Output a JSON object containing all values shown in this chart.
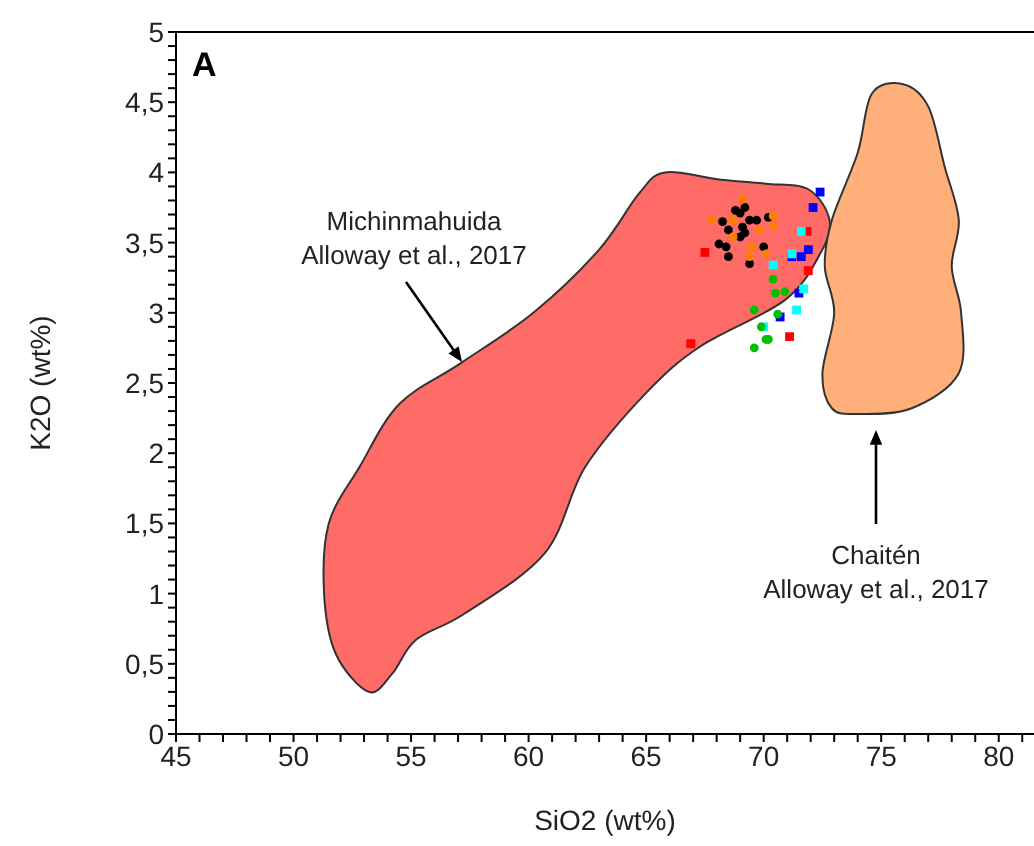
{
  "chart_data": {
    "type": "scatter",
    "xlabel": "SiO2 (wt%)",
    "ylabel": "K2O (wt%)",
    "xlim": [
      45,
      81.5
    ],
    "ylim": [
      0,
      5
    ],
    "xticks": [
      45,
      {
        "value": 46,
        "label": null
      },
      {
        "value": 47,
        "label": null
      },
      {
        "value": 48,
        "label": null
      },
      {
        "value": 49,
        "label": null
      },
      50,
      {
        "value": 51,
        "label": null
      },
      {
        "value": 52,
        "label": null
      },
      {
        "value": 53,
        "label": null
      },
      {
        "value": 54,
        "label": null
      },
      55,
      {
        "value": 56,
        "label": null
      },
      {
        "value": 57,
        "label": null
      },
      {
        "value": 58,
        "label": null
      },
      {
        "value": 59,
        "label": null
      },
      60,
      {
        "value": 61,
        "label": null
      },
      {
        "value": 62,
        "label": null
      },
      {
        "value": 63,
        "label": null
      },
      {
        "value": 64,
        "label": null
      },
      65,
      {
        "value": 66,
        "label": null
      },
      {
        "value": 67,
        "label": null
      },
      {
        "value": 68,
        "label": null
      },
      {
        "value": 69,
        "label": null
      },
      70,
      {
        "value": 71,
        "label": null
      },
      {
        "value": 72,
        "label": null
      },
      {
        "value": 73,
        "label": null
      },
      {
        "value": 74,
        "label": null
      },
      75,
      {
        "value": 76,
        "label": null
      },
      {
        "value": 77,
        "label": null
      },
      {
        "value": 78,
        "label": null
      },
      {
        "value": 79,
        "label": null
      },
      80,
      {
        "value": 81,
        "label": null
      }
    ],
    "yticks": [
      0,
      {
        "value": 0.1,
        "label": null
      },
      {
        "value": 0.2,
        "label": null
      },
      {
        "value": 0.3,
        "label": null
      },
      {
        "value": 0.4,
        "label": null
      },
      {
        "value": 0.5,
        "label": "0,5"
      },
      {
        "value": 0.6,
        "label": null
      },
      {
        "value": 0.7,
        "label": null
      },
      {
        "value": 0.8,
        "label": null
      },
      {
        "value": 0.9,
        "label": null
      },
      1,
      {
        "value": 1.1,
        "label": null
      },
      {
        "value": 1.2,
        "label": null
      },
      {
        "value": 1.3,
        "label": null
      },
      {
        "value": 1.4,
        "label": null
      },
      {
        "value": 1.5,
        "label": "1,5"
      },
      {
        "value": 1.6,
        "label": null
      },
      {
        "value": 1.7,
        "label": null
      },
      {
        "value": 1.8,
        "label": null
      },
      {
        "value": 1.9,
        "label": null
      },
      2,
      {
        "value": 2.1,
        "label": null
      },
      {
        "value": 2.2,
        "label": null
      },
      {
        "value": 2.3,
        "label": null
      },
      {
        "value": 2.4,
        "label": null
      },
      {
        "value": 2.5,
        "label": "2,5"
      },
      {
        "value": 2.6,
        "label": null
      },
      {
        "value": 2.7,
        "label": null
      },
      {
        "value": 2.8,
        "label": null
      },
      {
        "value": 2.9,
        "label": null
      },
      3,
      {
        "value": 3.1,
        "label": null
      },
      {
        "value": 3.2,
        "label": null
      },
      {
        "value": 3.3,
        "label": null
      },
      {
        "value": 3.4,
        "label": null
      },
      {
        "value": 3.5,
        "label": "3,5"
      },
      {
        "value": 3.6,
        "label": null
      },
      {
        "value": 3.7,
        "label": null
      },
      {
        "value": 3.8,
        "label": null
      },
      {
        "value": 3.9,
        "label": null
      },
      4,
      {
        "value": 4.1,
        "label": null
      },
      {
        "value": 4.2,
        "label": null
      },
      {
        "value": 4.3,
        "label": null
      },
      {
        "value": 4.4,
        "label": null
      },
      {
        "value": 4.5,
        "label": "4,5"
      },
      {
        "value": 4.6,
        "label": null
      },
      {
        "value": 4.7,
        "label": null
      },
      {
        "value": 4.8,
        "label": null
      },
      {
        "value": 4.9,
        "label": null
      },
      5
    ],
    "annotations": [
      "A",
      "Michinmahuida\nAlloway et al., 2017",
      "Chaitén\nAlloway et al., 2017"
    ],
    "series": [
      {
        "type": "area",
        "color": "#ff6b66",
        "x": [
          53.2,
          51.8,
          51.3,
          51.5,
          52.8,
          54.5,
          57.1,
          60.2,
          63.0,
          64.7,
          65.8,
          68.1,
          70.1,
          71.9,
          72.8,
          72.4,
          70.9,
          67.3,
          65.0,
          62.4,
          60.7,
          57.3,
          55.2,
          54.2
        ],
        "values": [
          0.3,
          0.57,
          1.0,
          1.5,
          1.9,
          2.35,
          2.64,
          3.0,
          3.45,
          3.85,
          4.0,
          3.95,
          3.92,
          3.88,
          3.66,
          3.42,
          3.09,
          2.76,
          2.43,
          1.9,
          1.29,
          0.86,
          0.67,
          0.43
        ]
      },
      {
        "type": "area",
        "color": "#ffb07a",
        "x": [
          75.9,
          74.6,
          74.0,
          72.9,
          72.6,
          73.0,
          72.5,
          72.9,
          74.0,
          76.3,
          78.3,
          78.4,
          78.0,
          78.3,
          77.7,
          77.0
        ],
        "values": [
          4.63,
          4.56,
          4.14,
          3.66,
          3.33,
          3.0,
          2.57,
          2.32,
          2.28,
          2.32,
          2.57,
          3.0,
          3.33,
          3.66,
          4.04,
          4.47
        ]
      },
      {
        "color": "#000000",
        "marker": "circle",
        "x": [
          68.25,
          68.5,
          69.0,
          69.2,
          69.4,
          69.1,
          69.7,
          70.2,
          68.1,
          68.5,
          69.4,
          69.0,
          70.0,
          68.4,
          69.2,
          68.8
        ],
        "values": [
          3.65,
          3.59,
          3.71,
          3.75,
          3.66,
          3.61,
          3.66,
          3.68,
          3.49,
          3.4,
          3.35,
          3.54,
          3.47,
          3.47,
          3.57,
          3.73
        ]
      },
      {
        "color": "#ff7f00",
        "marker": "circle",
        "x": [
          69.1,
          68.7,
          69.8,
          70.4,
          70.4,
          69.5,
          69.4,
          68.7,
          70.1,
          67.8
        ],
        "values": [
          3.81,
          3.66,
          3.59,
          3.69,
          3.62,
          3.47,
          3.4,
          3.54,
          3.42,
          3.66
        ]
      },
      {
        "color": "#ff0000",
        "marker": "square",
        "x": [
          67.5,
          66.9,
          71.85,
          71.9,
          71.1
        ],
        "values": [
          3.43,
          2.78,
          3.58,
          3.3,
          2.83
        ]
      },
      {
        "color": "#0000ff",
        "marker": "square",
        "x": [
          72.4,
          72.1,
          71.2,
          71.6,
          71.9,
          71.5,
          70.7
        ],
        "values": [
          3.86,
          3.75,
          3.4,
          3.4,
          3.45,
          3.14,
          2.97
        ]
      },
      {
        "color": "#00ffff",
        "marker": "square",
        "x": [
          71.6,
          70.4,
          71.2,
          71.7,
          71.4,
          70.0
        ],
        "values": [
          3.58,
          3.34,
          3.42,
          3.17,
          3.02,
          2.9
        ]
      },
      {
        "color": "#00c000",
        "marker": "circle",
        "x": [
          70.4,
          70.5,
          70.9,
          69.6,
          70.6,
          70.1,
          70.2,
          69.6,
          69.9
        ],
        "values": [
          3.24,
          3.14,
          3.15,
          3.02,
          2.99,
          2.81,
          2.81,
          2.75,
          2.9
        ]
      }
    ]
  }
}
